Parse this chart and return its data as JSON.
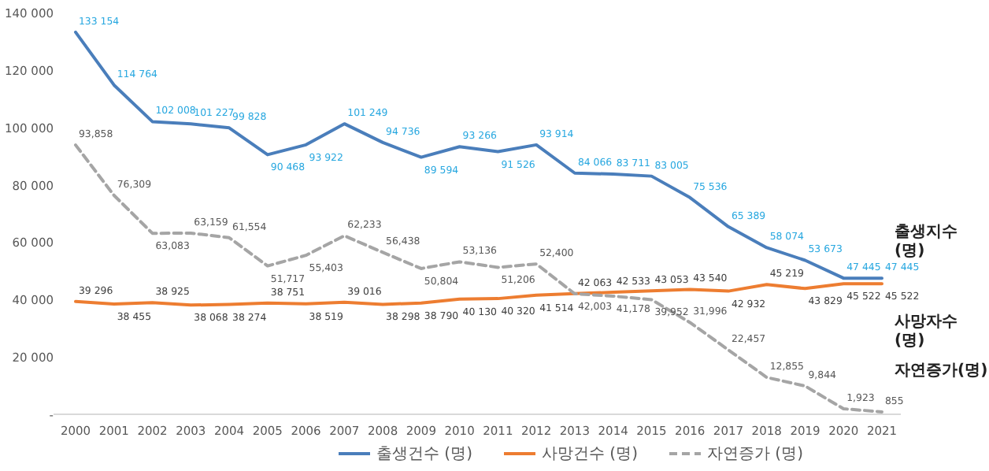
{
  "chart_data": {
    "type": "line",
    "categories": [
      "2000",
      "2001",
      "2002",
      "2003",
      "2004",
      "2005",
      "2006",
      "2007",
      "2008",
      "2009",
      "2010",
      "2011",
      "2012",
      "2013",
      "2014",
      "2015",
      "2016",
      "2017",
      "2018",
      "2019",
      "2020",
      "2021"
    ],
    "ylim": [
      0,
      140000
    ],
    "yticks": [
      {
        "value": 0,
        "label": "-"
      },
      {
        "value": 20000,
        "label": "20 000"
      },
      {
        "value": 40000,
        "label": "40 000"
      },
      {
        "value": 60000,
        "label": "60 000"
      },
      {
        "value": 80000,
        "label": "80 000"
      },
      {
        "value": 100000,
        "label": "100 000"
      },
      {
        "value": 120000,
        "label": "120 000"
      },
      {
        "value": 140000,
        "label": "140 000"
      }
    ],
    "grid": false,
    "legend": "bottom",
    "marker": "none",
    "series": [
      {
        "name": "출생건수 (명)",
        "color": "#4a7ebb",
        "line_style": "solid",
        "values": [
          133154,
          114764,
          102008,
          101227,
          99828,
          90468,
          93922,
          101249,
          94736,
          89594,
          93266,
          91526,
          93914,
          84066,
          83711,
          83005,
          75536,
          65389,
          58074,
          53673,
          47445,
          47445
        ],
        "value_labels": [
          "133 154",
          "114 764",
          "102 008",
          "101 227",
          "99 828",
          "90 468",
          "93 922",
          "101 249",
          "94 736",
          "89 594",
          "93 266",
          "91 526",
          "93 914",
          "84 066",
          "83 711",
          "83 005",
          "75 536",
          "65 389",
          "58 074",
          "53 673",
          "47 445",
          "47 445"
        ]
      },
      {
        "name": "사망건수 (명)",
        "color": "#ed7d31",
        "line_style": "solid",
        "values": [
          39296,
          38455,
          38925,
          38068,
          38274,
          38751,
          38519,
          39016,
          38298,
          38790,
          40130,
          40320,
          41514,
          42063,
          42533,
          43053,
          43540,
          42932,
          45219,
          43829,
          45522,
          45522
        ],
        "value_labels": [
          "39 296",
          "38 455",
          "38 925",
          "38 068",
          "38 274",
          "38 751",
          "38 519",
          "39 016",
          "38 298",
          "38 790",
          "40 130",
          "40 320",
          "41 514",
          "42 063",
          "42 533",
          "43 053",
          "43 540",
          "42 932",
          "45 219",
          "43 829",
          "45 522",
          "45 522"
        ]
      },
      {
        "name": "자연증가 (명)",
        "color": "#a5a5a5",
        "line_style": "dashed",
        "values": [
          93858,
          76309,
          63083,
          63159,
          61554,
          51717,
          55403,
          62233,
          56438,
          50804,
          53136,
          51206,
          52400,
          42003,
          41178,
          39952,
          31996,
          22457,
          12855,
          9844,
          1923,
          855
        ],
        "value_labels": [
          "93,858",
          "76,309",
          "63,083",
          "63,159",
          "61,554",
          "51,717",
          "55,403",
          "62,233",
          "56,438",
          "50,804",
          "53,136",
          "51,206",
          "52,400",
          "42,003",
          "41,178",
          "39,952",
          "31,996",
          "22,457",
          "12,855",
          "9,844",
          "1,923",
          "855"
        ]
      }
    ],
    "annotations": [
      "출생지수 (명)",
      "사망자수 (명)",
      "자연증가(명)"
    ]
  }
}
